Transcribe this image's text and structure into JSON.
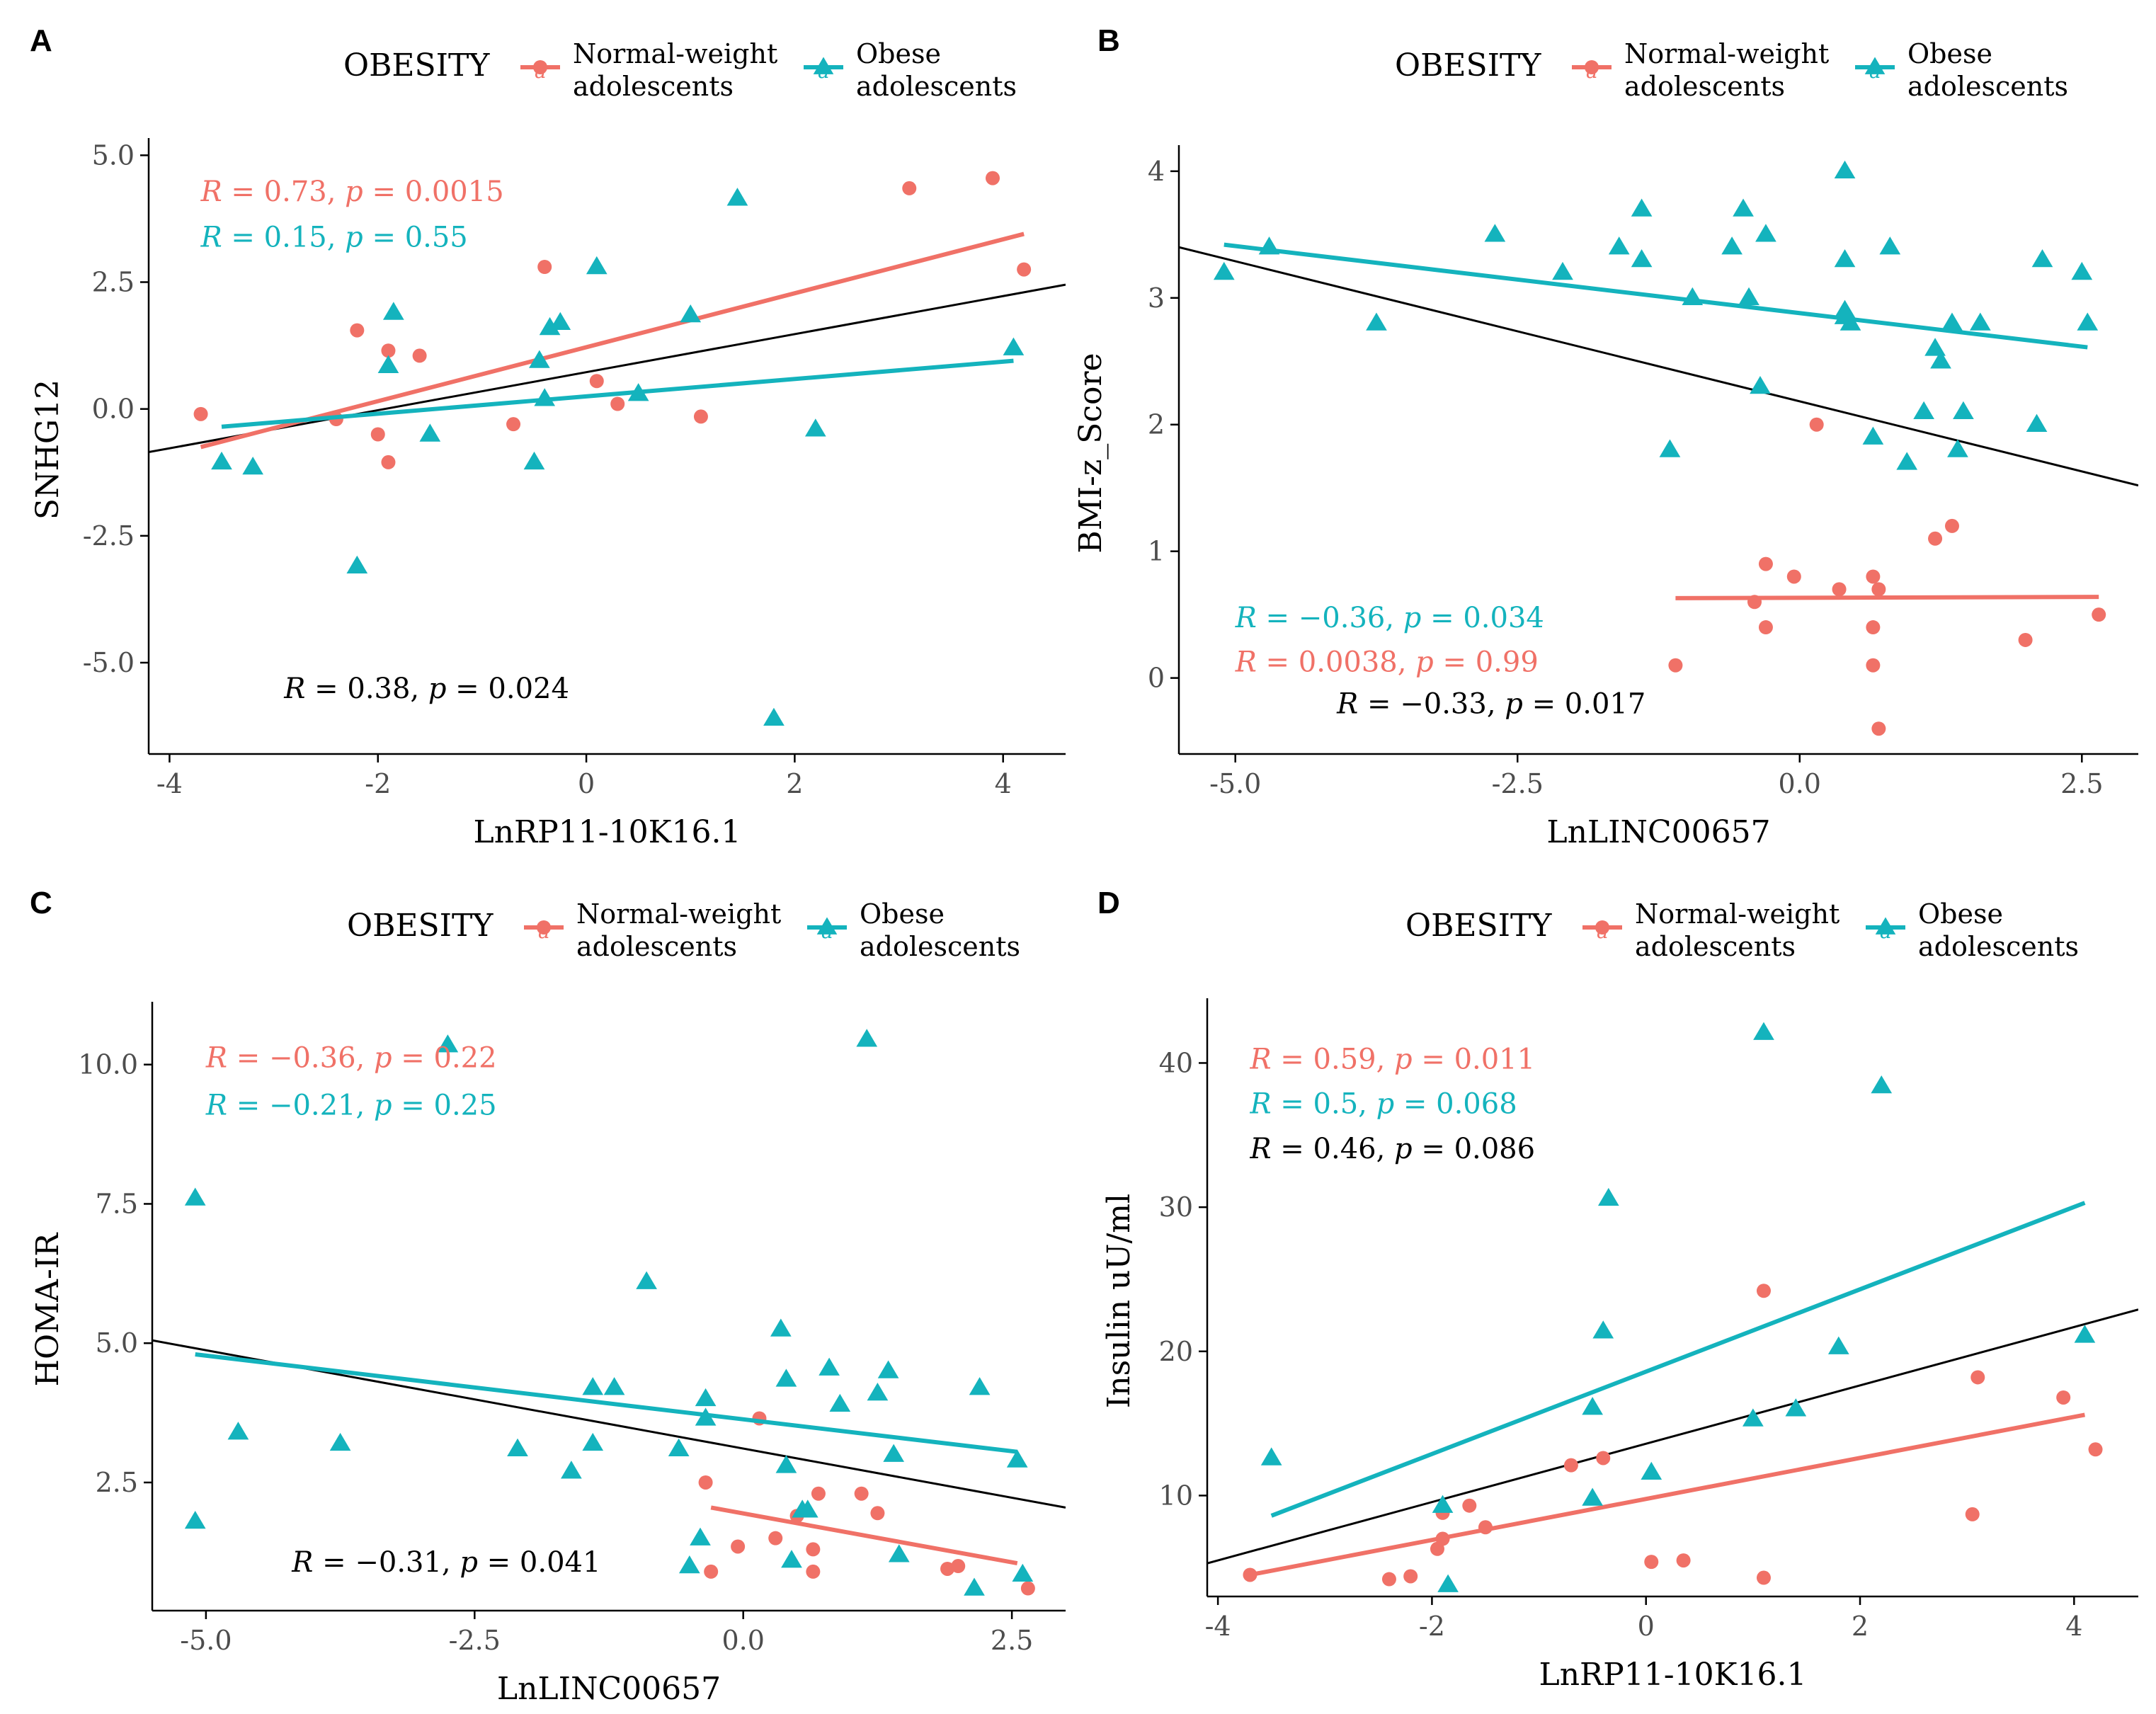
{
  "figure": {
    "colors": {
      "normal": "#F07167",
      "obese": "#14B3BD",
      "overall": "#000000",
      "axis": "#000000",
      "tick_text": "#4D4D4D"
    }
  },
  "chart_data": [
    {
      "type": "scatter",
      "panel_label": "A",
      "xlabel": "LnRP11-10K16.1",
      "ylabel": "SNHG12",
      "xlim": [
        -4.2,
        4.6
      ],
      "ylim": [
        -6.8,
        5.2
      ],
      "xticks": [
        -4,
        -2,
        0,
        2,
        4
      ],
      "xtick_labels": [
        "-4",
        "-2",
        "0",
        "2",
        "4"
      ],
      "yticks": [
        -5,
        -2.5,
        0,
        2.5,
        5
      ],
      "ytick_labels": [
        "-5.0",
        "-2.5",
        "0.0",
        "2.5",
        "5.0"
      ],
      "legend": {
        "title": "OBESITY",
        "entries": [
          {
            "label_line1": "Normal-weight",
            "label_line2": "adolescents",
            "series": "normal"
          },
          {
            "label_line1": "Obese",
            "label_line2": "adolescents",
            "series": "obese"
          }
        ]
      },
      "series": [
        {
          "name": "Normal-weight adolescents",
          "key": "normal",
          "marker": "circle",
          "x": [
            -3.7,
            -2.4,
            -2.2,
            -2.0,
            -1.9,
            -1.9,
            -1.6,
            -0.7,
            -0.4,
            0.1,
            0.3,
            1.1,
            3.1,
            3.9,
            4.2
          ],
          "y": [
            -0.1,
            -0.2,
            1.55,
            -0.5,
            1.15,
            -1.05,
            1.05,
            -0.3,
            2.8,
            0.55,
            0.1,
            -0.15,
            4.35,
            4.55,
            2.75
          ],
          "fit": {
            "x0": -3.7,
            "y0": -0.75,
            "x1": 4.2,
            "y1": 3.45
          }
        },
        {
          "name": "Obese adolescents",
          "key": "obese",
          "marker": "triangle",
          "x": [
            -3.5,
            -3.2,
            -2.2,
            -1.9,
            -1.85,
            -1.5,
            -0.5,
            -0.45,
            -0.4,
            -0.35,
            -0.25,
            0.1,
            0.5,
            1.0,
            1.45,
            1.8,
            2.2,
            4.1
          ],
          "y": [
            -1.05,
            -1.15,
            -3.1,
            0.85,
            1.9,
            -0.5,
            -1.05,
            0.95,
            0.2,
            1.6,
            1.7,
            2.8,
            0.3,
            1.85,
            4.15,
            -6.1,
            -0.4,
            1.2
          ],
          "fit": {
            "x0": -3.5,
            "y0": -0.35,
            "x1": 4.1,
            "y1": 0.95
          }
        }
      ],
      "overall_fit": {
        "x0": -4.2,
        "y0": -0.85,
        "x1": 4.6,
        "y1": 2.45
      },
      "annotations": [
        {
          "series": "normal",
          "r_label": "R",
          "r_value": " = 0.73, ",
          "p_label": "p",
          "p_value": " = 0.0015",
          "x": -3.7,
          "y": 4.1
        },
        {
          "series": "obese",
          "r_label": "R",
          "r_value": " = 0.15, ",
          "p_label": "p",
          "p_value": " = 0.55",
          "x": -3.7,
          "y": 3.2
        },
        {
          "series": "overall",
          "r_label": "R",
          "r_value": " = 0.38, ",
          "p_label": "p",
          "p_value": " = 0.024",
          "x": -2.9,
          "y": -5.7
        }
      ]
    },
    {
      "type": "scatter",
      "panel_label": "B",
      "xlabel": "LnLINC00657",
      "ylabel": "BMI-z_Score",
      "xlim": [
        -5.5,
        3.0
      ],
      "ylim": [
        -0.6,
        4.15
      ],
      "xticks": [
        -5,
        -2.5,
        0,
        2.5
      ],
      "xtick_labels": [
        "-5.0",
        "-2.5",
        "0.0",
        "2.5"
      ],
      "yticks": [
        0,
        1,
        2,
        3,
        4
      ],
      "ytick_labels": [
        "0",
        "1",
        "2",
        "3",
        "4"
      ],
      "legend": {
        "title": "OBESITY",
        "entries": [
          {
            "label_line1": "Normal-weight",
            "label_line2": "adolescents",
            "series": "normal"
          },
          {
            "label_line1": "Obese",
            "label_line2": "adolescents",
            "series": "obese"
          }
        ]
      },
      "series": [
        {
          "name": "Normal-weight adolescents",
          "key": "normal",
          "marker": "circle",
          "x": [
            -1.1,
            -0.4,
            -0.3,
            -0.3,
            -0.05,
            0.15,
            0.35,
            0.65,
            0.65,
            0.65,
            0.7,
            0.7,
            1.2,
            1.35,
            2.0,
            2.65
          ],
          "y": [
            0.1,
            0.6,
            0.9,
            0.4,
            0.8,
            2.0,
            0.7,
            0.8,
            0.4,
            0.1,
            -0.4,
            0.7,
            1.1,
            1.2,
            0.3,
            0.5
          ],
          "fit": {
            "x0": -1.1,
            "y0": 0.63,
            "x1": 2.65,
            "y1": 0.64
          }
        },
        {
          "name": "Obese adolescents",
          "key": "obese",
          "marker": "triangle",
          "x": [
            -5.1,
            -4.7,
            -3.75,
            -2.7,
            -2.1,
            -1.6,
            -1.4,
            -1.4,
            -1.15,
            -0.95,
            -0.6,
            -0.5,
            -0.45,
            -0.35,
            -0.3,
            0.4,
            0.4,
            0.4,
            0.4,
            0.45,
            0.65,
            0.8,
            0.95,
            1.1,
            1.2,
            1.25,
            1.35,
            1.4,
            1.45,
            1.6,
            2.1,
            2.15,
            2.5,
            2.55
          ],
          "y": [
            3.2,
            3.4,
            2.8,
            3.5,
            3.2,
            3.4,
            3.7,
            3.3,
            1.8,
            3.0,
            3.4,
            3.7,
            3.0,
            2.3,
            3.5,
            4.0,
            3.3,
            2.9,
            2.85,
            2.8,
            1.9,
            3.4,
            1.7,
            2.1,
            2.6,
            2.5,
            2.8,
            1.8,
            2.1,
            2.8,
            2.0,
            3.3,
            3.2,
            2.8
          ],
          "fit": {
            "x0": -5.1,
            "y0": 3.42,
            "x1": 2.55,
            "y1": 2.61
          }
        }
      ],
      "overall_fit": {
        "x0": -5.5,
        "y0": 3.4,
        "x1": 3.0,
        "y1": 1.52
      },
      "annotations": [
        {
          "series": "obese",
          "r_label": "R",
          "r_value": " = −0.36, ",
          "p_label": "p",
          "p_value": " = 0.034",
          "x": -5.0,
          "y": 0.4
        },
        {
          "series": "normal",
          "r_label": "R",
          "r_value": " = 0.0038, ",
          "p_label": "p",
          "p_value": " = 0.99",
          "x": -5.0,
          "y": 0.05
        },
        {
          "series": "overall",
          "r_label": "R",
          "r_value": " = −0.33, ",
          "p_label": "p",
          "p_value": " = 0.017",
          "x": -4.1,
          "y": -0.28
        }
      ]
    },
    {
      "type": "scatter",
      "panel_label": "C",
      "xlabel": "LnLINC00657",
      "ylabel": "HOMA-IR",
      "xlim": [
        -5.5,
        3.0
      ],
      "ylim": [
        0.2,
        11.0
      ],
      "xticks": [
        -5,
        -2.5,
        0,
        2.5
      ],
      "xtick_labels": [
        "-5.0",
        "-2.5",
        "0.0",
        "2.5"
      ],
      "yticks": [
        2.5,
        5,
        7.5,
        10
      ],
      "ytick_labels": [
        "2.5",
        "5.0",
        "7.5",
        "10.0"
      ],
      "legend": {
        "title": "OBESITY",
        "entries": [
          {
            "label_line1": "Normal-weight",
            "label_line2": "adolescents",
            "series": "normal"
          },
          {
            "label_line1": "Obese",
            "label_line2": "adolescents",
            "series": "obese"
          }
        ]
      },
      "series": [
        {
          "name": "Normal-weight adolescents",
          "key": "normal",
          "marker": "circle",
          "x": [
            -0.35,
            -0.3,
            -0.05,
            0.15,
            0.3,
            0.5,
            0.65,
            0.65,
            0.7,
            1.1,
            1.25,
            1.9,
            2.0,
            2.65
          ],
          "y": [
            2.5,
            0.9,
            1.35,
            3.65,
            1.5,
            1.9,
            1.3,
            0.9,
            2.3,
            2.3,
            1.95,
            0.95,
            1.0,
            0.6
          ],
          "fit": {
            "x0": -0.3,
            "y0": 2.05,
            "x1": 2.55,
            "y1": 1.05
          }
        },
        {
          "name": "Obese adolescents",
          "key": "obese",
          "marker": "triangle",
          "x": [
            -5.1,
            -5.1,
            -4.7,
            -3.75,
            -2.75,
            -2.1,
            -1.6,
            -1.4,
            -1.4,
            -1.2,
            -0.9,
            -0.6,
            -0.5,
            -0.4,
            -0.35,
            -0.35,
            0.35,
            0.4,
            0.4,
            0.45,
            0.55,
            0.6,
            0.8,
            0.9,
            1.15,
            1.25,
            1.35,
            1.4,
            1.45,
            2.15,
            2.2,
            2.55,
            2.6
          ],
          "y": [
            7.6,
            1.8,
            3.4,
            3.2,
            10.35,
            3.1,
            2.7,
            4.2,
            3.2,
            4.2,
            6.1,
            3.1,
            1.0,
            1.5,
            3.65,
            4.0,
            5.25,
            4.35,
            2.8,
            1.1,
            2.0,
            2.0,
            4.55,
            3.9,
            10.45,
            4.1,
            4.5,
            3.0,
            1.2,
            0.6,
            4.2,
            2.9,
            0.85
          ],
          "fit": {
            "x0": -5.1,
            "y0": 4.8,
            "x1": 2.55,
            "y1": 3.05
          }
        }
      ],
      "overall_fit": {
        "x0": -5.5,
        "y0": 5.05,
        "x1": 3.0,
        "y1": 2.05
      },
      "annotations": [
        {
          "series": "normal",
          "r_label": "R",
          "r_value": " = −0.36, ",
          "p_label": "p",
          "p_value": " = 0.22",
          "x": -5.0,
          "y": 9.95
        },
        {
          "series": "obese",
          "r_label": "R",
          "r_value": " = −0.21, ",
          "p_label": "p",
          "p_value": " = 0.25",
          "x": -5.0,
          "y": 9.1
        },
        {
          "series": "overall",
          "r_label": "R",
          "r_value": " = −0.31, ",
          "p_label": "p",
          "p_value": " = 0.041",
          "x": -4.2,
          "y": 0.9
        }
      ]
    },
    {
      "type": "scatter",
      "panel_label": "D",
      "xlabel": "LnRP11-10K16.1",
      "ylabel": "Insulin uU/ml",
      "xlim": [
        -4.1,
        4.6
      ],
      "ylim": [
        3.0,
        44.0
      ],
      "xticks": [
        -4,
        -2,
        0,
        2,
        4
      ],
      "xtick_labels": [
        "-4",
        "-2",
        "0",
        "2",
        "4"
      ],
      "yticks": [
        10,
        20,
        30,
        40
      ],
      "ytick_labels": [
        "10",
        "20",
        "30",
        "40"
      ],
      "legend": {
        "title": "OBESITY",
        "entries": [
          {
            "label_line1": "Normal-weight",
            "label_line2": "adolescents",
            "series": "normal"
          },
          {
            "label_line1": "Obese",
            "label_line2": "adolescents",
            "series": "obese"
          }
        ]
      },
      "series": [
        {
          "name": "Normal-weight adolescents",
          "key": "normal",
          "marker": "circle",
          "x": [
            -3.7,
            -2.4,
            -2.2,
            -1.95,
            -1.9,
            -1.9,
            -1.65,
            -1.5,
            -0.7,
            -0.4,
            0.05,
            0.35,
            1.1,
            1.1,
            3.05,
            3.1,
            3.9,
            4.2
          ],
          "y": [
            4.5,
            4.2,
            4.4,
            6.3,
            7.0,
            8.8,
            9.3,
            7.8,
            12.1,
            12.6,
            5.4,
            5.5,
            24.2,
            4.3,
            8.7,
            18.2,
            16.8,
            13.2
          ],
          "fit": {
            "x0": -3.7,
            "y0": 4.5,
            "x1": 4.1,
            "y1": 15.6
          }
        },
        {
          "name": "Obese adolescents",
          "key": "obese",
          "marker": "triangle",
          "x": [
            -3.5,
            -1.9,
            -1.85,
            -0.5,
            -0.5,
            -0.4,
            -0.35,
            0.05,
            1.0,
            1.1,
            1.4,
            1.8,
            2.2,
            4.1
          ],
          "y": [
            12.6,
            9.3,
            3.8,
            9.8,
            16.1,
            21.4,
            30.6,
            11.6,
            15.3,
            42.1,
            16.0,
            20.3,
            38.4,
            21.1
          ],
          "fit": {
            "x0": -3.5,
            "y0": 8.6,
            "x1": 4.1,
            "y1": 30.3
          }
        }
      ],
      "overall_fit": {
        "x0": -4.1,
        "y0": 5.3,
        "x1": 4.6,
        "y1": 22.9
      },
      "annotations": [
        {
          "series": "normal",
          "r_label": "R",
          "r_value": " = 0.59, ",
          "p_label": "p",
          "p_value": " = 0.011",
          "x": -3.7,
          "y": 39.6
        },
        {
          "series": "obese",
          "r_label": "R",
          "r_value": " = 0.5, ",
          "p_label": "p",
          "p_value": " = 0.068",
          "x": -3.7,
          "y": 36.5
        },
        {
          "series": "overall",
          "r_label": "R",
          "r_value": " = 0.46, ",
          "p_label": "p",
          "p_value": " = 0.086",
          "x": -3.7,
          "y": 33.4
        }
      ]
    }
  ]
}
